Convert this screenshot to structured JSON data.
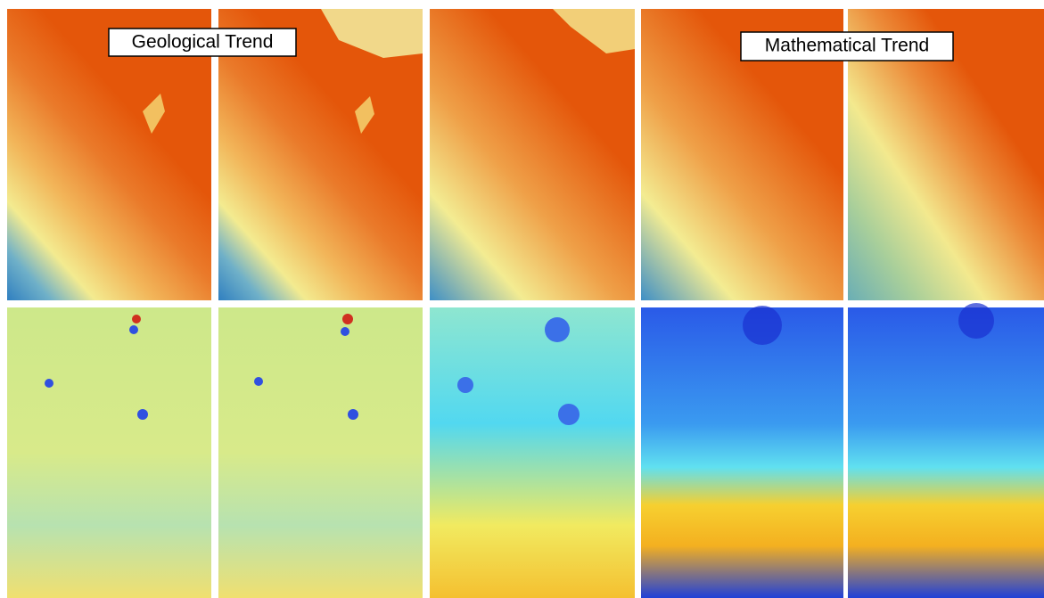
{
  "labels": {
    "geological": "Geological Trend",
    "mathematical": "Mathematical Trend"
  }
}
